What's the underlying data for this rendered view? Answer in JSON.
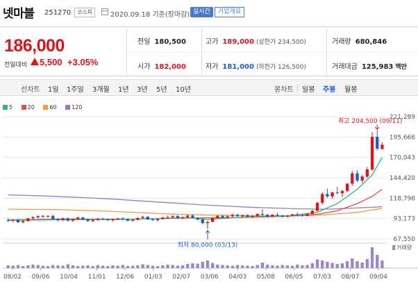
{
  "header": {
    "stock_name": "넷마블",
    "stock_code": "251270",
    "market": "코스피",
    "date": "2020.09.18 기준(장마감)",
    "realtime_label": "실시간",
    "company_btn": "기업개요"
  },
  "price": {
    "current": "186,000",
    "change_label": "전일대비",
    "change_amount": "5,500",
    "change_rate": "+3.05%",
    "direction": "up"
  },
  "stats": {
    "prev_close": {
      "label": "전일",
      "value": "180,500"
    },
    "open": {
      "label": "시가",
      "value": "182,000"
    },
    "high": {
      "label": "고가",
      "value": "189,000",
      "sub": "(상한가 234,500)"
    },
    "low": {
      "label": "저가",
      "value": "181,000",
      "sub": "(하한가 126,500)"
    },
    "volume": {
      "label": "거래량",
      "value": "680,846"
    },
    "amount": {
      "label": "거래대금",
      "value": "125,983",
      "unit": "백만"
    }
  },
  "toolbar": {
    "line_chart_label": "선차트",
    "line_periods": [
      "1일",
      "1주일",
      "3개월",
      "1년",
      "3년",
      "5년",
      "10년"
    ],
    "candle_label": "봉차트",
    "candle_periods": [
      "일봉",
      "주봉",
      "월봉"
    ],
    "active_candle": "주봉"
  },
  "colors": {
    "up": "#e0121a",
    "down": "#1e5bd1",
    "ma5": "#2bb673",
    "ma20": "#e8474f",
    "ma60": "#f39a3d",
    "ma120": "#9b77c9",
    "volume": "#9b86c9"
  },
  "chart_data": {
    "type": "candlestick",
    "legend": [
      {
        "name": "5",
        "color": "#2bb673"
      },
      {
        "name": "20",
        "color": "#e8474f"
      },
      {
        "name": "60",
        "color": "#f39a3d"
      },
      {
        "name": "120",
        "color": "#9b77c9"
      }
    ],
    "y_ticks": [
      221289,
      195666,
      170043,
      144420,
      118796,
      93173,
      67550
    ],
    "y_tick_labels": [
      "221,289",
      "195,666",
      "170,043",
      "144,420",
      "118,796",
      "93,173",
      "67,550"
    ],
    "ylim": [
      67550,
      221289
    ],
    "x_tick_labels": [
      "08/02",
      "09/06",
      "10/04",
      "11/01",
      "12/06",
      "01/03",
      "02/07",
      "03/06",
      "04/03",
      "05/08",
      "06/05",
      "07/03",
      "08/07",
      "09/04"
    ],
    "high_annotation": "최고 204,500 (09/11)",
    "low_annotation": "최저 80,000 (03/13)",
    "volume_label": "거래량",
    "candles": [
      {
        "o": 91000,
        "h": 93500,
        "l": 89000,
        "c": 90500
      },
      {
        "o": 90500,
        "h": 92500,
        "l": 88500,
        "c": 91500
      },
      {
        "o": 91500,
        "h": 93000,
        "l": 87500,
        "c": 88500
      },
      {
        "o": 88500,
        "h": 91500,
        "l": 87000,
        "c": 90000
      },
      {
        "o": 90000,
        "h": 94000,
        "l": 89500,
        "c": 93500
      },
      {
        "o": 93500,
        "h": 96000,
        "l": 92000,
        "c": 95000
      },
      {
        "o": 95000,
        "h": 97000,
        "l": 93000,
        "c": 96500
      },
      {
        "o": 96500,
        "h": 98000,
        "l": 94000,
        "c": 95500
      },
      {
        "o": 95500,
        "h": 97500,
        "l": 94500,
        "c": 96500
      },
      {
        "o": 96500,
        "h": 98000,
        "l": 92000,
        "c": 92500
      },
      {
        "o": 92500,
        "h": 94000,
        "l": 90000,
        "c": 91000
      },
      {
        "o": 91000,
        "h": 94500,
        "l": 90500,
        "c": 93500
      },
      {
        "o": 93500,
        "h": 95000,
        "l": 89500,
        "c": 90500
      },
      {
        "o": 90500,
        "h": 93000,
        "l": 89000,
        "c": 92500
      },
      {
        "o": 92500,
        "h": 95500,
        "l": 91500,
        "c": 94500
      },
      {
        "o": 94500,
        "h": 95500,
        "l": 91000,
        "c": 92000
      },
      {
        "o": 92000,
        "h": 93000,
        "l": 89000,
        "c": 90000
      },
      {
        "o": 90000,
        "h": 92500,
        "l": 88500,
        "c": 91500
      },
      {
        "o": 91500,
        "h": 94000,
        "l": 90000,
        "c": 93000
      },
      {
        "o": 93000,
        "h": 94500,
        "l": 91000,
        "c": 92000
      },
      {
        "o": 92000,
        "h": 93500,
        "l": 90500,
        "c": 91000
      },
      {
        "o": 91000,
        "h": 93000,
        "l": 89500,
        "c": 92500
      },
      {
        "o": 92500,
        "h": 94000,
        "l": 91000,
        "c": 93500
      },
      {
        "o": 93500,
        "h": 95000,
        "l": 91500,
        "c": 92500
      },
      {
        "o": 92500,
        "h": 93500,
        "l": 89500,
        "c": 90500
      },
      {
        "o": 90500,
        "h": 92500,
        "l": 89000,
        "c": 91500
      },
      {
        "o": 91500,
        "h": 94500,
        "l": 91000,
        "c": 94000
      },
      {
        "o": 94000,
        "h": 96500,
        "l": 93000,
        "c": 95500
      },
      {
        "o": 95500,
        "h": 96000,
        "l": 91500,
        "c": 92000
      },
      {
        "o": 92000,
        "h": 93500,
        "l": 90000,
        "c": 91000
      },
      {
        "o": 91000,
        "h": 93000,
        "l": 89500,
        "c": 92500
      },
      {
        "o": 92500,
        "h": 95000,
        "l": 92000,
        "c": 94500
      },
      {
        "o": 94500,
        "h": 96500,
        "l": 93500,
        "c": 95000
      },
      {
        "o": 95000,
        "h": 97000,
        "l": 94000,
        "c": 96500
      },
      {
        "o": 96500,
        "h": 97500,
        "l": 93000,
        "c": 94000
      },
      {
        "o": 94000,
        "h": 95500,
        "l": 92500,
        "c": 95000
      },
      {
        "o": 95000,
        "h": 98000,
        "l": 94500,
        "c": 97000
      },
      {
        "o": 97000,
        "h": 98500,
        "l": 93500,
        "c": 94000
      },
      {
        "o": 94000,
        "h": 95000,
        "l": 91000,
        "c": 92000
      },
      {
        "o": 92000,
        "h": 93500,
        "l": 86000,
        "c": 87500
      },
      {
        "o": 87500,
        "h": 90500,
        "l": 80000,
        "c": 89000
      },
      {
        "o": 89000,
        "h": 94500,
        "l": 88500,
        "c": 94000
      },
      {
        "o": 94000,
        "h": 97500,
        "l": 93000,
        "c": 96500
      },
      {
        "o": 96500,
        "h": 98000,
        "l": 93500,
        "c": 94500
      },
      {
        "o": 94500,
        "h": 97000,
        "l": 93000,
        "c": 96000
      },
      {
        "o": 96000,
        "h": 99000,
        "l": 95000,
        "c": 98000
      },
      {
        "o": 98000,
        "h": 99500,
        "l": 95500,
        "c": 96000
      },
      {
        "o": 96000,
        "h": 98000,
        "l": 95000,
        "c": 97500
      },
      {
        "o": 97500,
        "h": 98500,
        "l": 94500,
        "c": 95500
      },
      {
        "o": 95500,
        "h": 97000,
        "l": 94000,
        "c": 96500
      },
      {
        "o": 96500,
        "h": 99500,
        "l": 96000,
        "c": 99000
      },
      {
        "o": 99000,
        "h": 105000,
        "l": 97000,
        "c": 98000
      },
      {
        "o": 98000,
        "h": 99000,
        "l": 94500,
        "c": 95500
      },
      {
        "o": 95500,
        "h": 98500,
        "l": 95000,
        "c": 98000
      },
      {
        "o": 98000,
        "h": 100500,
        "l": 96500,
        "c": 97000
      },
      {
        "o": 97000,
        "h": 98000,
        "l": 94500,
        "c": 95500
      },
      {
        "o": 95500,
        "h": 97500,
        "l": 95000,
        "c": 97000
      },
      {
        "o": 97000,
        "h": 99000,
        "l": 96000,
        "c": 98500
      },
      {
        "o": 98500,
        "h": 101000,
        "l": 96500,
        "c": 97500
      },
      {
        "o": 97500,
        "h": 98500,
        "l": 95500,
        "c": 96500
      },
      {
        "o": 96500,
        "h": 99500,
        "l": 96000,
        "c": 99000
      },
      {
        "o": 99000,
        "h": 104000,
        "l": 98500,
        "c": 103000
      },
      {
        "o": 103000,
        "h": 114000,
        "l": 102000,
        "c": 113000
      },
      {
        "o": 113000,
        "h": 126000,
        "l": 111000,
        "c": 124000
      },
      {
        "o": 124000,
        "h": 131000,
        "l": 119000,
        "c": 121000
      },
      {
        "o": 121000,
        "h": 127000,
        "l": 118000,
        "c": 126000
      },
      {
        "o": 126000,
        "h": 133000,
        "l": 124000,
        "c": 125000
      },
      {
        "o": 125000,
        "h": 129000,
        "l": 120000,
        "c": 128000
      },
      {
        "o": 128000,
        "h": 138000,
        "l": 126000,
        "c": 137000
      },
      {
        "o": 137000,
        "h": 153000,
        "l": 134000,
        "c": 150000
      },
      {
        "o": 150000,
        "h": 154000,
        "l": 139000,
        "c": 141000
      },
      {
        "o": 141000,
        "h": 148000,
        "l": 138000,
        "c": 146000
      },
      {
        "o": 146000,
        "h": 158000,
        "l": 144000,
        "c": 155000
      },
      {
        "o": 155000,
        "h": 202000,
        "l": 153000,
        "c": 196000
      },
      {
        "o": 196000,
        "h": 204500,
        "l": 179000,
        "c": 181000
      },
      {
        "o": 180500,
        "h": 189000,
        "l": 181000,
        "c": 186000
      }
    ],
    "ma5": [
      [
        0,
        91000
      ],
      [
        12,
        91800
      ],
      [
        24,
        92000
      ],
      [
        36,
        94500
      ],
      [
        40,
        92000
      ],
      [
        48,
        95500
      ],
      [
        56,
        96500
      ],
      [
        62,
        101000
      ],
      [
        66,
        112000
      ],
      [
        70,
        130000
      ],
      [
        73,
        148000
      ],
      [
        75,
        170043
      ]
    ],
    "ma20": [
      [
        0,
        91500
      ],
      [
        12,
        92500
      ],
      [
        24,
        92200
      ],
      [
        36,
        93800
      ],
      [
        44,
        94200
      ],
      [
        56,
        96000
      ],
      [
        62,
        98500
      ],
      [
        66,
        103000
      ],
      [
        70,
        112000
      ],
      [
        73,
        121000
      ],
      [
        75,
        130000
      ]
    ],
    "ma60": [
      [
        0,
        105000
      ],
      [
        10,
        104500
      ],
      [
        20,
        102500
      ],
      [
        30,
        99500
      ],
      [
        40,
        97500
      ],
      [
        50,
        97000
      ],
      [
        58,
        96500
      ],
      [
        64,
        98000
      ],
      [
        70,
        101000
      ],
      [
        75,
        106000
      ]
    ],
    "ma120": [
      [
        0,
        123000
      ],
      [
        10,
        121000
      ],
      [
        20,
        118000
      ],
      [
        30,
        114000
      ],
      [
        40,
        110000
      ],
      [
        50,
        107000
      ],
      [
        58,
        105500
      ],
      [
        64,
        105000
      ],
      [
        70,
        106500
      ],
      [
        75,
        108000
      ]
    ],
    "volume": [
      8,
      7,
      9,
      6,
      8,
      10,
      9,
      7,
      6,
      9,
      8,
      7,
      11,
      8,
      6,
      7,
      8,
      6,
      9,
      7,
      6,
      8,
      7,
      9,
      6,
      7,
      8,
      11,
      9,
      7,
      6,
      8,
      10,
      9,
      7,
      8,
      12,
      14,
      13,
      18,
      22,
      15,
      10,
      9,
      8,
      7,
      9,
      8,
      7,
      6,
      9,
      16,
      10,
      8,
      7,
      9,
      8,
      7,
      10,
      8,
      9,
      14,
      25,
      22,
      18,
      15,
      12,
      14,
      20,
      28,
      20,
      16,
      26,
      60,
      38,
      22
    ]
  }
}
